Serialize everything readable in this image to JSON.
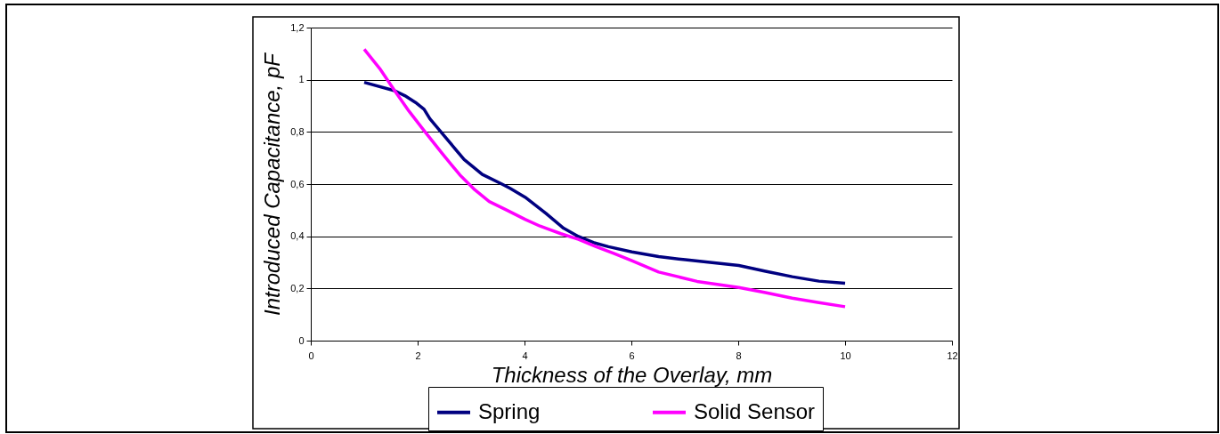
{
  "chart_data": {
    "type": "line",
    "xlabel": "Thickness of the Overlay, mm",
    "ylabel": "Introduced Capacitance, pF",
    "xlim": [
      0,
      12
    ],
    "xticks": [
      0,
      2,
      4,
      6,
      8,
      10,
      12
    ],
    "ylim": [
      0,
      1.2
    ],
    "yticks": [
      0,
      {
        "value": 0.2,
        "label": "0,2"
      },
      {
        "value": 0.4,
        "label": "0,4"
      },
      {
        "value": 0.6,
        "label": "0,6"
      },
      {
        "value": 0.8,
        "label": "0,8"
      },
      1,
      {
        "value": 1.2,
        "label": "1,2"
      }
    ],
    "grid": "y",
    "legend": "bottom",
    "marker": "none",
    "line_style": "solid",
    "series": [
      {
        "name": "Spring",
        "color": "#000080",
        "x": [
          1.0,
          1.57,
          1.76,
          1.96,
          2.12,
          2.23,
          2.51,
          2.87,
          3.21,
          3.57,
          3.73,
          4.01,
          4.4,
          4.73,
          5.01,
          5.29,
          5.57,
          6.01,
          6.51,
          7.01,
          7.51,
          8.01,
          8.51,
          9.01,
          9.51,
          10.0
        ],
        "values": [
          0.99,
          0.958,
          0.939,
          0.913,
          0.887,
          0.85,
          0.782,
          0.694,
          0.637,
          0.601,
          0.584,
          0.55,
          0.488,
          0.431,
          0.399,
          0.376,
          0.36,
          0.34,
          0.322,
          0.31,
          0.299,
          0.288,
          0.266,
          0.245,
          0.228,
          0.22
        ]
      },
      {
        "name": "Solid Sensor",
        "color": "#ff00ff",
        "x": [
          1.0,
          1.29,
          1.57,
          1.84,
          2.12,
          2.46,
          2.79,
          3.07,
          3.34,
          3.68,
          4.01,
          4.29,
          4.68,
          5.01,
          5.34,
          5.68,
          6.01,
          6.51,
          7.23,
          8.01,
          8.51,
          9.01,
          9.51,
          10.0
        ],
        "values": [
          1.117,
          1.043,
          0.958,
          0.879,
          0.805,
          0.717,
          0.635,
          0.578,
          0.533,
          0.499,
          0.465,
          0.439,
          0.41,
          0.388,
          0.36,
          0.334,
          0.306,
          0.263,
          0.227,
          0.204,
          0.184,
          0.163,
          0.146,
          0.13
        ]
      }
    ]
  }
}
